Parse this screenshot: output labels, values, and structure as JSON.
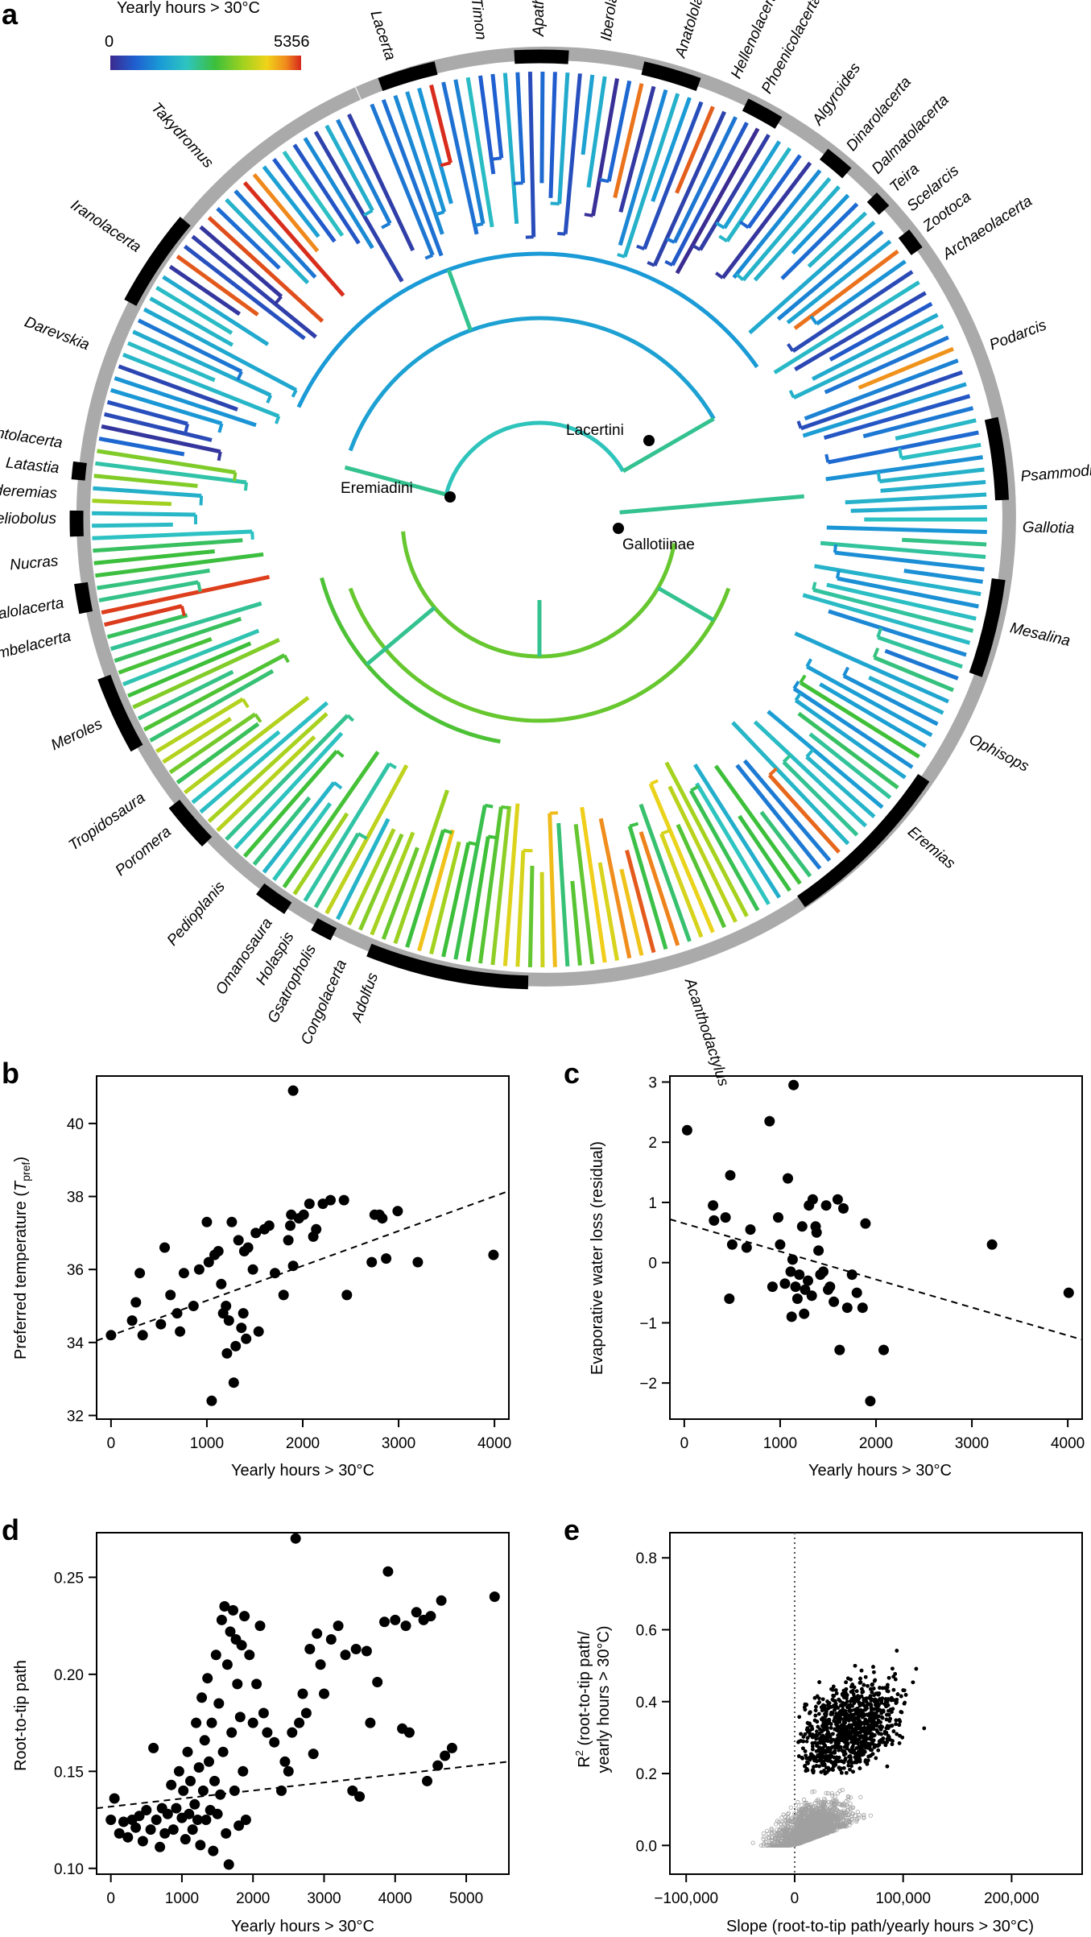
{
  "panel_a": {
    "letter": "a",
    "legend": {
      "title": "Yearly hours > 30°C",
      "min_label": "0",
      "max_label": "5356",
      "colors": [
        "#3b2a8f",
        "#1f5fd0",
        "#1a9ad6",
        "#2ec4c0",
        "#3cbf3a",
        "#a4d21f",
        "#f0d31a",
        "#f08a1c",
        "#d6261c"
      ]
    },
    "node_labels": [
      {
        "name": "Lacertini"
      },
      {
        "name": "Eremiadini"
      },
      {
        "name": "Gallotiinae"
      }
    ],
    "clades": [
      {
        "name": "Lacerta",
        "deg": -108,
        "dark": true
      },
      {
        "name": "Timon",
        "deg": -97,
        "dark": false
      },
      {
        "name": "Apathya",
        "deg": -90,
        "dark": true
      },
      {
        "name": "Iberolacerta",
        "deg": -82,
        "dark": false
      },
      {
        "name": "Anatololacerta",
        "deg": -73,
        "dark": true
      },
      {
        "name": "Hellenolacerta",
        "deg": -66,
        "dark": false
      },
      {
        "name": "Phoenicolacerta",
        "deg": -62,
        "dark": true
      },
      {
        "name": "Algyroides",
        "deg": -55,
        "dark": false
      },
      {
        "name": "Dinarolacerta",
        "deg": -50,
        "dark": true
      },
      {
        "name": "Dalmatolacerta",
        "deg": -46,
        "dark": false
      },
      {
        "name": "Teira",
        "deg": -43,
        "dark": true
      },
      {
        "name": "Scelarcis",
        "deg": -40,
        "dark": false
      },
      {
        "name": "Zootoca",
        "deg": -37,
        "dark": true
      },
      {
        "name": "Archaeolacerta",
        "deg": -33,
        "dark": false
      },
      {
        "name": "Podarcis",
        "deg": -21,
        "dark": false
      },
      {
        "name": "Psammodromus",
        "deg": -5,
        "dark": true
      },
      {
        "name": "Gallotia",
        "deg": 1,
        "dark": false
      },
      {
        "name": "Mesalina",
        "deg": 13,
        "dark": true
      },
      {
        "name": "Ophisops",
        "deg": 27,
        "dark": false
      },
      {
        "name": "Eremias",
        "deg": 40,
        "dark": true
      },
      {
        "name": "Acanthodactylus",
        "deg": 72,
        "dark": false
      },
      {
        "name": "Adolfus",
        "deg": 110,
        "dark": true
      },
      {
        "name": "Congolacerta",
        "deg": 114,
        "dark": false
      },
      {
        "name": "Gsatropholis",
        "deg": 118,
        "dark": true
      },
      {
        "name": "Holaspis",
        "deg": 121,
        "dark": false
      },
      {
        "name": "Omanosaura",
        "deg": 124,
        "dark": true
      },
      {
        "name": "Pedioplanis",
        "deg": 131,
        "dark": false
      },
      {
        "name": "Poromera",
        "deg": 140,
        "dark": true
      },
      {
        "name": "Tropidosaura",
        "deg": 145,
        "dark": false
      },
      {
        "name": "Meroles",
        "deg": 155,
        "dark": true
      },
      {
        "name": "Vhembelacerta",
        "deg": 166,
        "dark": false
      },
      {
        "name": "Australolacerta",
        "deg": 170,
        "dark": true
      },
      {
        "name": "Nucras",
        "deg": 175,
        "dark": false
      },
      {
        "name": "Heliobolus",
        "deg": 180,
        "dark": true
      },
      {
        "name": "Pseuderemias",
        "deg": 183,
        "dark": false
      },
      {
        "name": "Latastia",
        "deg": 186,
        "dark": true
      },
      {
        "name": "Atlantolacerta",
        "deg": 189,
        "dark": false
      },
      {
        "name": "Darevskia",
        "deg": 201,
        "dark": false
      },
      {
        "name": "Iranolacerta",
        "deg": 214,
        "dark": true
      },
      {
        "name": "Takydromus",
        "deg": 227,
        "dark": false
      }
    ]
  },
  "chart_data": [
    {
      "id": "b",
      "type": "scatter",
      "letter": "b",
      "xlabel": "Yearly hours > 30°C",
      "ylabel_main": "Preferred temperature (",
      "ylabel_sym": "T",
      "ylabel_sub": "pref",
      "ylabel_end": ")",
      "xlim": [
        -150,
        4150
      ],
      "ylim": [
        31.9,
        41.3
      ],
      "xticks": [
        0,
        1000,
        2000,
        3000,
        4000
      ],
      "xtick_labels": [
        "0",
        "1000",
        "2000",
        "3000",
        "4000"
      ],
      "yticks": [
        32,
        34,
        36,
        38,
        40
      ],
      "ytick_labels": [
        "32",
        "34",
        "36",
        "38",
        "40"
      ],
      "trend": {
        "x": [
          -150,
          4150
        ],
        "y": [
          34.05,
          38.15
        ]
      },
      "points": [
        [
          0,
          34.2
        ],
        [
          220,
          34.6
        ],
        [
          260,
          35.1
        ],
        [
          300,
          35.9
        ],
        [
          330,
          34.2
        ],
        [
          520,
          34.5
        ],
        [
          560,
          36.6
        ],
        [
          620,
          35.3
        ],
        [
          690,
          34.8
        ],
        [
          720,
          34.3
        ],
        [
          760,
          35.9
        ],
        [
          860,
          35.0
        ],
        [
          920,
          36.0
        ],
        [
          1000,
          37.3
        ],
        [
          1020,
          36.2
        ],
        [
          1050,
          32.4
        ],
        [
          1080,
          36.4
        ],
        [
          1120,
          36.5
        ],
        [
          1150,
          35.6
        ],
        [
          1170,
          34.8
        ],
        [
          1200,
          35.0
        ],
        [
          1210,
          33.7
        ],
        [
          1230,
          34.6
        ],
        [
          1260,
          37.3
        ],
        [
          1280,
          32.9
        ],
        [
          1300,
          33.9
        ],
        [
          1330,
          36.8
        ],
        [
          1360,
          34.4
        ],
        [
          1380,
          34.8
        ],
        [
          1390,
          36.5
        ],
        [
          1410,
          34.1
        ],
        [
          1430,
          36.6
        ],
        [
          1480,
          36.0
        ],
        [
          1510,
          37.0
        ],
        [
          1540,
          34.3
        ],
        [
          1600,
          37.1
        ],
        [
          1650,
          37.2
        ],
        [
          1710,
          35.9
        ],
        [
          1800,
          35.3
        ],
        [
          1850,
          36.8
        ],
        [
          1870,
          37.2
        ],
        [
          1880,
          37.5
        ],
        [
          1900,
          36.1
        ],
        [
          1960,
          37.4
        ],
        [
          2010,
          37.5
        ],
        [
          2070,
          37.8
        ],
        [
          2110,
          36.9
        ],
        [
          2140,
          37.1
        ],
        [
          2210,
          37.8
        ],
        [
          2290,
          37.9
        ],
        [
          2430,
          37.9
        ],
        [
          2460,
          35.3
        ],
        [
          2720,
          36.2
        ],
        [
          2750,
          37.5
        ],
        [
          2800,
          37.5
        ],
        [
          2830,
          37.4
        ],
        [
          2870,
          36.3
        ],
        [
          2990,
          37.6
        ],
        [
          3200,
          36.2
        ],
        [
          3990,
          36.4
        ],
        [
          1900,
          40.9
        ]
      ]
    },
    {
      "id": "c",
      "type": "scatter",
      "letter": "c",
      "xlabel": "Yearly hours > 30°C",
      "ylabel": "Evaporative water loss (residual)",
      "xlim": [
        -150,
        4150
      ],
      "ylim": [
        -2.6,
        3.1
      ],
      "xticks": [
        0,
        1000,
        2000,
        3000,
        4000
      ],
      "xtick_labels": [
        "0",
        "1000",
        "2000",
        "3000",
        "4000"
      ],
      "yticks": [
        -2,
        -1,
        0,
        1,
        2,
        3
      ],
      "ytick_labels": [
        "−2",
        "−1",
        "0",
        "1",
        "2",
        "3"
      ],
      "trend": {
        "x": [
          -150,
          4150
        ],
        "y": [
          0.72,
          -1.28
        ]
      },
      "points": [
        [
          30,
          2.2
        ],
        [
          300,
          0.95
        ],
        [
          310,
          0.7
        ],
        [
          430,
          0.75
        ],
        [
          470,
          -0.6
        ],
        [
          480,
          1.45
        ],
        [
          500,
          0.3
        ],
        [
          650,
          0.25
        ],
        [
          690,
          0.55
        ],
        [
          890,
          2.35
        ],
        [
          920,
          -0.4
        ],
        [
          980,
          0.75
        ],
        [
          1000,
          0.3
        ],
        [
          1050,
          -0.35
        ],
        [
          1080,
          1.4
        ],
        [
          1110,
          -0.15
        ],
        [
          1120,
          -0.9
        ],
        [
          1130,
          0.05
        ],
        [
          1140,
          2.95
        ],
        [
          1160,
          -0.4
        ],
        [
          1180,
          -0.6
        ],
        [
          1200,
          -0.2
        ],
        [
          1230,
          0.6
        ],
        [
          1250,
          -0.85
        ],
        [
          1260,
          -0.45
        ],
        [
          1290,
          -0.3
        ],
        [
          1300,
          0.95
        ],
        [
          1330,
          -0.55
        ],
        [
          1340,
          1.05
        ],
        [
          1370,
          0.6
        ],
        [
          1380,
          0.5
        ],
        [
          1400,
          0.2
        ],
        [
          1420,
          -0.2
        ],
        [
          1450,
          -0.15
        ],
        [
          1480,
          0.95
        ],
        [
          1500,
          -0.45
        ],
        [
          1520,
          -0.4
        ],
        [
          1560,
          -0.65
        ],
        [
          1600,
          1.05
        ],
        [
          1620,
          -1.45
        ],
        [
          1660,
          0.9
        ],
        [
          1700,
          -0.75
        ],
        [
          1750,
          -0.2
        ],
        [
          1800,
          -0.5
        ],
        [
          1860,
          -0.75
        ],
        [
          1890,
          0.65
        ],
        [
          1940,
          -2.3
        ],
        [
          2080,
          -1.45
        ],
        [
          3210,
          0.3
        ],
        [
          4010,
          -0.5
        ]
      ]
    },
    {
      "id": "d",
      "type": "scatter",
      "letter": "d",
      "xlabel": "Yearly hours > 30°C",
      "ylabel": "Root-to-tip path",
      "xlim": [
        -200,
        5600
      ],
      "ylim": [
        0.097,
        0.273
      ],
      "xticks": [
        0,
        1000,
        2000,
        3000,
        4000,
        5000
      ],
      "xtick_labels": [
        "0",
        "1000",
        "2000",
        "3000",
        "4000",
        "5000"
      ],
      "yticks": [
        0.1,
        0.15,
        0.2,
        0.25
      ],
      "ytick_labels": [
        "0.10",
        "0.15",
        "0.20",
        "0.25"
      ],
      "trend": {
        "x": [
          -200,
          5600
        ],
        "y": [
          0.131,
          0.155
        ]
      },
      "points": [
        [
          0,
          0.125
        ],
        [
          50,
          0.136
        ],
        [
          120,
          0.118
        ],
        [
          180,
          0.124
        ],
        [
          240,
          0.116
        ],
        [
          300,
          0.125
        ],
        [
          350,
          0.121
        ],
        [
          400,
          0.127
        ],
        [
          450,
          0.114
        ],
        [
          500,
          0.13
        ],
        [
          560,
          0.12
        ],
        [
          600,
          0.162
        ],
        [
          640,
          0.125
        ],
        [
          690,
          0.111
        ],
        [
          720,
          0.131
        ],
        [
          760,
          0.118
        ],
        [
          800,
          0.128
        ],
        [
          850,
          0.143
        ],
        [
          880,
          0.12
        ],
        [
          920,
          0.131
        ],
        [
          960,
          0.15
        ],
        [
          1000,
          0.126
        ],
        [
          1020,
          0.14
        ],
        [
          1050,
          0.115
        ],
        [
          1080,
          0.16
        ],
        [
          1100,
          0.128
        ],
        [
          1120,
          0.145
        ],
        [
          1150,
          0.12
        ],
        [
          1180,
          0.133
        ],
        [
          1200,
          0.175
        ],
        [
          1220,
          0.125
        ],
        [
          1240,
          0.152
        ],
        [
          1260,
          0.112
        ],
        [
          1280,
          0.188
        ],
        [
          1300,
          0.14
        ],
        [
          1320,
          0.166
        ],
        [
          1340,
          0.125
        ],
        [
          1360,
          0.198
        ],
        [
          1380,
          0.155
        ],
        [
          1400,
          0.13
        ],
        [
          1420,
          0.175
        ],
        [
          1440,
          0.109
        ],
        [
          1460,
          0.145
        ],
        [
          1480,
          0.21
        ],
        [
          1500,
          0.128
        ],
        [
          1520,
          0.185
        ],
        [
          1540,
          0.138
        ],
        [
          1560,
          0.228
        ],
        [
          1580,
          0.16
        ],
        [
          1600,
          0.235
        ],
        [
          1620,
          0.118
        ],
        [
          1640,
          0.205
        ],
        [
          1660,
          0.102
        ],
        [
          1680,
          0.222
        ],
        [
          1700,
          0.17
        ],
        [
          1720,
          0.233
        ],
        [
          1740,
          0.14
        ],
        [
          1760,
          0.218
        ],
        [
          1780,
          0.195
        ],
        [
          1800,
          0.122
        ],
        [
          1820,
          0.178
        ],
        [
          1840,
          0.215
        ],
        [
          1860,
          0.15
        ],
        [
          1880,
          0.23
        ],
        [
          1900,
          0.125
        ],
        [
          1950,
          0.21
        ],
        [
          2000,
          0.175
        ],
        [
          2050,
          0.195
        ],
        [
          2100,
          0.225
        ],
        [
          2150,
          0.18
        ],
        [
          2200,
          0.17
        ],
        [
          2300,
          0.165
        ],
        [
          2400,
          0.14
        ],
        [
          2450,
          0.155
        ],
        [
          2500,
          0.15
        ],
        [
          2550,
          0.17
        ],
        [
          2600,
          0.27
        ],
        [
          2650,
          0.175
        ],
        [
          2700,
          0.19
        ],
        [
          2750,
          0.18
        ],
        [
          2800,
          0.213
        ],
        [
          2850,
          0.159
        ],
        [
          2900,
          0.221
        ],
        [
          2950,
          0.205
        ],
        [
          3000,
          0.19
        ],
        [
          3100,
          0.218
        ],
        [
          3200,
          0.225
        ],
        [
          3300,
          0.21
        ],
        [
          3400,
          0.14
        ],
        [
          3450,
          0.213
        ],
        [
          3500,
          0.137
        ],
        [
          3600,
          0.212
        ],
        [
          3650,
          0.175
        ],
        [
          3750,
          0.196
        ],
        [
          3850,
          0.227
        ],
        [
          3900,
          0.253
        ],
        [
          4000,
          0.228
        ],
        [
          4100,
          0.172
        ],
        [
          4150,
          0.225
        ],
        [
          4200,
          0.17
        ],
        [
          4300,
          0.232
        ],
        [
          4400,
          0.228
        ],
        [
          4450,
          0.145
        ],
        [
          4500,
          0.23
        ],
        [
          4600,
          0.153
        ],
        [
          4650,
          0.238
        ],
        [
          4700,
          0.158
        ],
        [
          4800,
          0.162
        ],
        [
          5400,
          0.24
        ]
      ]
    },
    {
      "id": "e",
      "type": "scatter",
      "letter": "e",
      "xlabel": "Slope (root-to-tip path/yearly hours > 30°C)",
      "ylabel_line1": "R",
      "ylabel_sup": "2",
      "ylabel_line1_end": " (root-to-tip path/",
      "ylabel_line2": "yearly hours > 30°C)",
      "xlim": [
        -115000,
        265000
      ],
      "ylim": [
        -0.08,
        0.87
      ],
      "xticks": [
        -100000,
        0,
        100000,
        200000
      ],
      "xtick_labels": [
        "−100,000",
        "0",
        "100,000",
        "200,000"
      ],
      "yticks": [
        0.0,
        0.2,
        0.4,
        0.6,
        0.8
      ],
      "ytick_labels": [
        "0.0",
        "0.2",
        "0.4",
        "0.6",
        "0.8"
      ],
      "reference_x": 0,
      "cloud": {
        "n_sig": 3200,
        "n_nonsig": 2200,
        "center_x": 52000,
        "center_y": 0.33
      }
    }
  ]
}
